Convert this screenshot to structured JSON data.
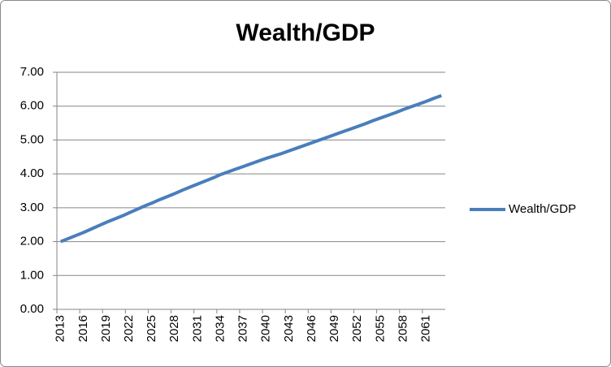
{
  "chart_data": {
    "type": "line",
    "title": "Wealth/GDP",
    "categories": [
      "2013",
      null,
      null,
      "2016",
      null,
      null,
      "2019",
      null,
      null,
      "2022",
      null,
      null,
      "2025",
      null,
      null,
      "2028",
      null,
      null,
      "2031",
      null,
      null,
      "2034",
      null,
      null,
      "2037",
      null,
      null,
      "2040",
      null,
      null,
      "2043",
      null,
      null,
      "2046",
      null,
      null,
      "2049",
      null,
      null,
      "2052",
      null,
      null,
      "2055",
      null,
      null,
      "2058",
      null,
      null,
      "2061",
      null,
      null
    ],
    "series": [
      {
        "name": "Wealth/GDP",
        "color": "#4a7ebb",
        "values": [
          2.0,
          2.09,
          2.18,
          2.27,
          2.37,
          2.47,
          2.57,
          2.66,
          2.75,
          2.85,
          2.95,
          3.05,
          3.14,
          3.24,
          3.33,
          3.42,
          3.52,
          3.61,
          3.7,
          3.79,
          3.88,
          3.98,
          4.06,
          4.14,
          4.22,
          4.3,
          4.38,
          4.46,
          4.53,
          4.6,
          4.68,
          4.76,
          4.84,
          4.92,
          5.0,
          5.08,
          5.16,
          5.24,
          5.32,
          5.4,
          5.48,
          5.57,
          5.65,
          5.73,
          5.81,
          5.9,
          5.98,
          6.06,
          6.14,
          6.23,
          6.31
        ]
      }
    ],
    "ylim": [
      0,
      7
    ],
    "yticks": [
      {
        "value": 0,
        "label": "0.00"
      },
      {
        "value": 1,
        "label": "1.00"
      },
      {
        "value": 2,
        "label": "2.00"
      },
      {
        "value": 3,
        "label": "3.00"
      },
      {
        "value": 4,
        "label": "4.00"
      },
      {
        "value": 5,
        "label": "5.00"
      },
      {
        "value": 6,
        "label": "6.00"
      },
      {
        "value": 7,
        "label": "7.00"
      }
    ],
    "grid": true,
    "legend": "right"
  }
}
